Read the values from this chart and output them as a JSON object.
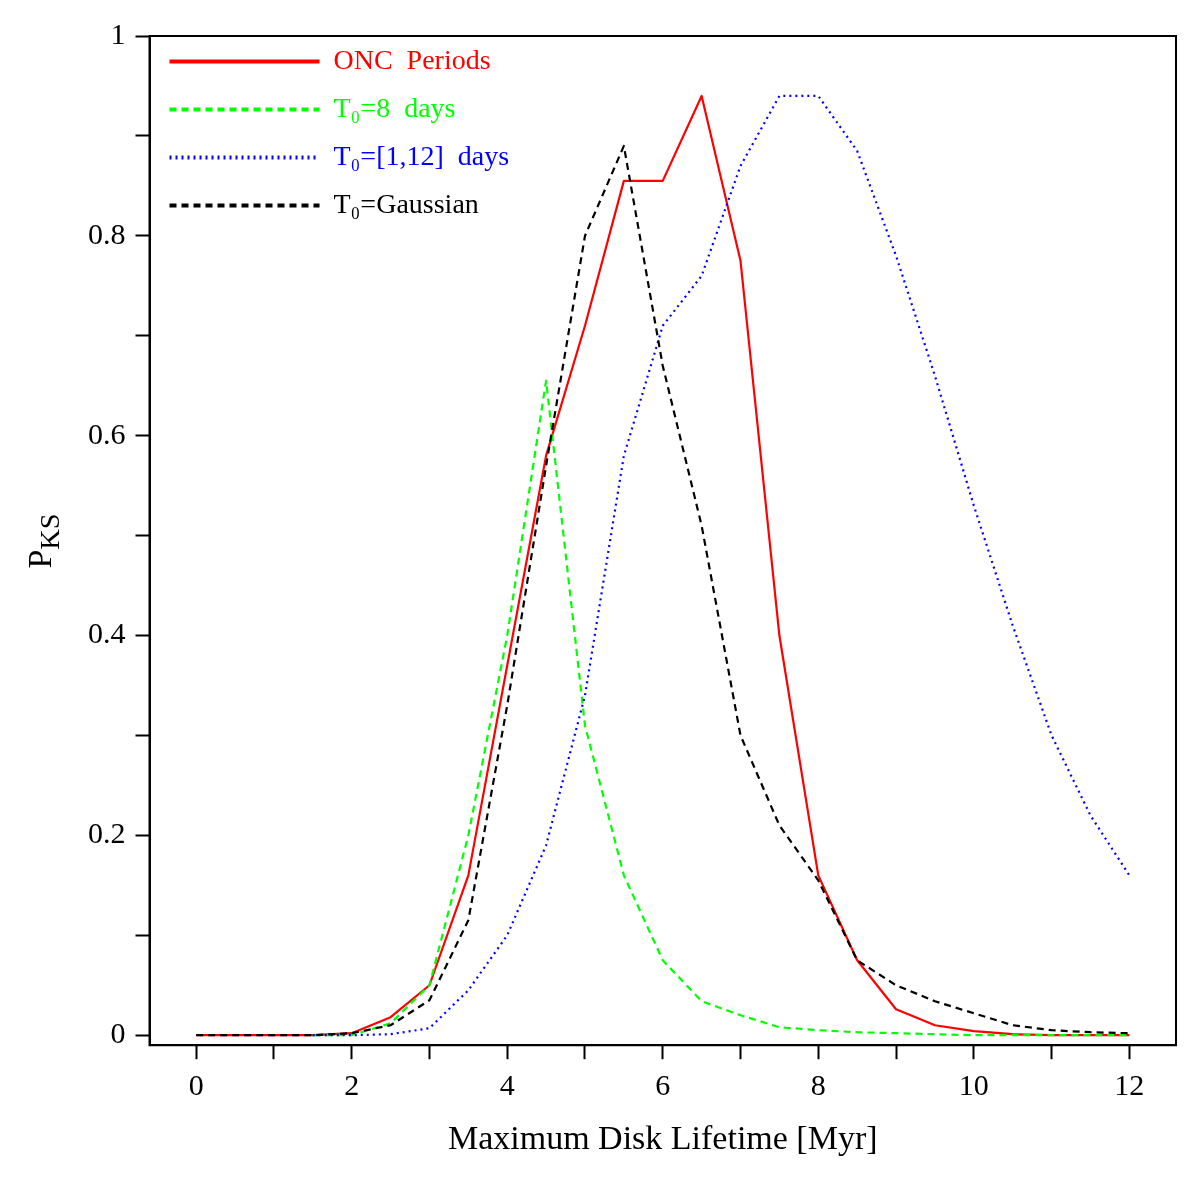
{
  "chart_data": {
    "type": "line",
    "xlabel": "Maximum Disk Lifetime [Myr]",
    "ylabel": "P$_{KS}$",
    "legend": "top left",
    "grid": false,
    "xlim": [
      -0.6,
      12.6
    ],
    "ylim": [
      -0.01,
      1
    ],
    "xticks": [
      0,
      {
        "value": 1,
        "label": null
      },
      2,
      {
        "value": 3,
        "label": null
      },
      4,
      {
        "value": 5,
        "label": null
      },
      6,
      {
        "value": 7,
        "label": null
      },
      8,
      {
        "value": 9,
        "label": null
      },
      10,
      {
        "value": 11,
        "label": null
      },
      12
    ],
    "yticks": [
      0,
      {
        "value": 0.1,
        "label": null
      },
      0.2,
      {
        "value": 0.3,
        "label": null
      },
      0.4,
      {
        "value": 0.5,
        "label": null
      },
      0.6,
      {
        "value": 0.7,
        "label": null
      },
      0.8,
      {
        "value": 0.9,
        "label": null
      },
      1
    ],
    "x": [
      0,
      0.5,
      1,
      1.5,
      2,
      2.5,
      3,
      3.5,
      4,
      4.5,
      5,
      5.5,
      6,
      6.5,
      7,
      7.5,
      8,
      8.5,
      9,
      9.5,
      10,
      10.5,
      11,
      11.5,
      12
    ],
    "series": [
      {
        "name": "ONC  Periods",
        "color": "#ff0000",
        "line_style": "solid",
        "values": [
          0,
          0,
          0,
          0,
          0.002,
          0.018,
          0.05,
          0.16,
          0.37,
          0.58,
          0.71,
          0.855,
          0.855,
          0.94,
          0.775,
          0.4,
          0.16,
          0.075,
          0.026,
          0.01,
          0.004,
          0.001,
          0,
          0,
          0
        ]
      },
      {
        "name": "T₀=8  days",
        "color": "#00ff00",
        "line_style": "dashed",
        "values": [
          null,
          null,
          null,
          0,
          0,
          0.012,
          0.05,
          0.2,
          0.4,
          0.655,
          0.31,
          0.16,
          0.075,
          0.034,
          0.02,
          0.008,
          0.005,
          0.003,
          0.002,
          0.001,
          0,
          0,
          0,
          0,
          0
        ]
      },
      {
        "name": "T₀=[1,12]  days",
        "color": "#0000ff",
        "line_style": "dotted",
        "values": [
          null,
          null,
          null,
          0,
          0,
          0.001,
          0.007,
          0.045,
          0.1,
          0.19,
          0.34,
          0.58,
          0.71,
          0.76,
          0.87,
          0.94,
          0.94,
          0.885,
          0.78,
          0.66,
          0.53,
          0.41,
          0.3,
          0.22,
          0.16
        ]
      },
      {
        "name": "T₀=Gaussian",
        "color": "#000000",
        "line_style": "dashed",
        "values": [
          0,
          0,
          0,
          0,
          0.002,
          0.01,
          0.035,
          0.115,
          0.33,
          0.57,
          0.8,
          0.89,
          0.67,
          0.51,
          0.3,
          0.21,
          0.155,
          0.075,
          0.05,
          0.034,
          0.022,
          0.01,
          0.005,
          0.003,
          0.002
        ]
      }
    ]
  }
}
